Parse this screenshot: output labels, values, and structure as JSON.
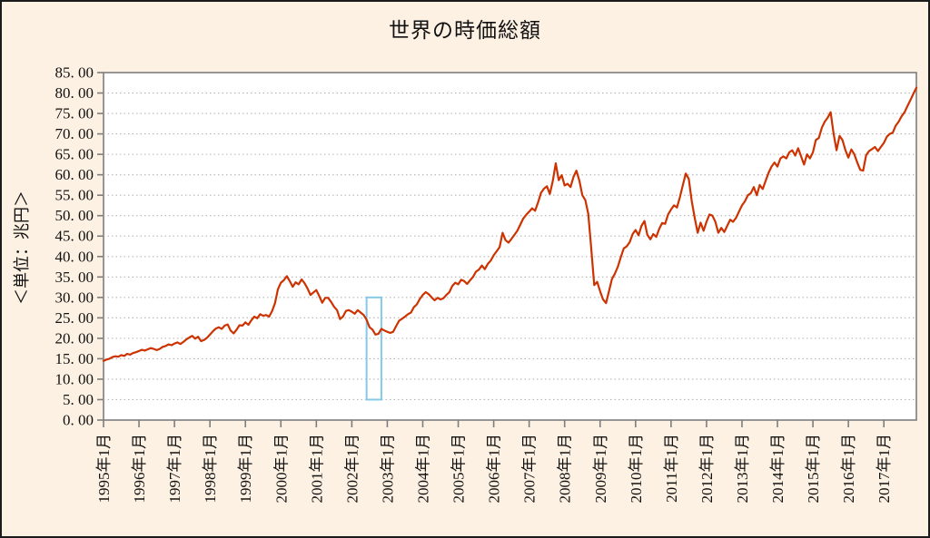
{
  "page": {
    "background_color": "#fdf1e3",
    "frame_border_color": "#1b1b1b",
    "plot_background_color": "#ffffff"
  },
  "chart_data": {
    "type": "line",
    "title": "世界の時価総額",
    "y_axis_title": "＜単位：兆円＞",
    "legend": "none",
    "grid": "horizontal dotted",
    "frequency": "monthly",
    "x_start": "1995-01",
    "x_end": "2017-12",
    "x_tick_labels": [
      "1995年1月",
      "1996年1月",
      "1997年1月",
      "1998年1月",
      "1999年1月",
      "2000年1月",
      "2001年1月",
      "2002年1月",
      "2003年1月",
      "2004年1月",
      "2005年1月",
      "2006年1月",
      "2007年1月",
      "2008年1月",
      "2009年1月",
      "2010年1月",
      "2011年1月",
      "2012年1月",
      "2013年1月",
      "2014年1月",
      "2015年1月",
      "2016年1月",
      "2017年1月"
    ],
    "ylim": [
      0,
      85
    ],
    "y_tick_step": 5,
    "y_tick_labels": [
      "0. 00",
      "5. 00",
      "10. 00",
      "15. 00",
      "20. 00",
      "25. 00",
      "30. 00",
      "35. 00",
      "40. 00",
      "45. 00",
      "50. 00",
      "55. 00",
      "60. 00",
      "65. 00",
      "70. 00",
      "75. 00",
      "80. 00",
      "85. 00"
    ],
    "line_color": "#cc3300",
    "axis_color": "#7d7d7d",
    "gridline_color": "#b5b5b5",
    "annotation": {
      "shape": "rectangle-outline",
      "color": "#85c9e8",
      "x_from": "2002-06",
      "x_to": "2002-11",
      "y_from": 5,
      "y_to": 30
    },
    "series": [
      {
        "name": "世界の時価総額",
        "values": [
          14.5,
          14.8,
          15.0,
          15.4,
          15.6,
          15.5,
          15.9,
          15.7,
          16.2,
          16.0,
          16.4,
          16.6,
          16.9,
          17.2,
          17.0,
          17.3,
          17.6,
          17.4,
          17.1,
          17.4,
          17.9,
          18.1,
          18.5,
          18.3,
          18.7,
          19.0,
          18.6,
          19.1,
          19.7,
          20.2,
          20.6,
          19.9,
          20.4,
          19.3,
          19.6,
          20.1,
          20.9,
          21.7,
          22.4,
          22.7,
          22.3,
          23.1,
          23.4,
          21.9,
          21.2,
          22.1,
          23.2,
          23.1,
          23.9,
          23.3,
          24.4,
          25.3,
          24.9,
          25.9,
          25.5,
          25.7,
          25.3,
          26.6,
          28.6,
          32.0,
          33.6,
          34.2,
          35.2,
          34.0,
          32.6,
          33.7,
          33.2,
          34.4,
          33.5,
          32.2,
          30.6,
          31.2,
          31.8,
          30.3,
          28.7,
          29.9,
          29.9,
          28.9,
          27.7,
          26.9,
          24.7,
          25.3,
          26.7,
          26.9,
          26.5,
          26.0,
          26.9,
          26.3,
          25.7,
          24.5,
          22.7,
          22.1,
          20.9,
          21.1,
          22.3,
          21.9,
          21.6,
          21.3,
          21.6,
          23.0,
          24.3,
          24.8,
          25.3,
          25.9,
          26.3,
          27.6,
          28.3,
          29.6,
          30.6,
          31.3,
          30.8,
          30.0,
          29.3,
          29.9,
          29.5,
          29.8,
          30.6,
          31.3,
          32.8,
          33.6,
          33.2,
          34.3,
          34.0,
          33.3,
          34.2,
          35.0,
          36.3,
          36.8,
          37.8,
          36.9,
          38.2,
          39.0,
          40.3,
          41.3,
          42.3,
          45.8,
          44.0,
          43.4,
          44.3,
          45.3,
          46.3,
          47.8,
          49.3,
          50.2,
          51.0,
          51.8,
          51.2,
          53.2,
          55.6,
          56.6,
          57.2,
          55.3,
          58.5,
          62.8,
          58.7,
          59.9,
          57.4,
          57.8,
          57.0,
          59.5,
          61.0,
          58.5,
          55.0,
          53.8,
          50.5,
          42.0,
          33.0,
          33.8,
          31.5,
          29.5,
          28.6,
          31.5,
          34.5,
          35.8,
          37.5,
          39.8,
          42.0,
          42.5,
          43.5,
          45.5,
          46.5,
          45.2,
          47.5,
          48.7,
          45.3,
          44.2,
          45.5,
          44.8,
          46.8,
          48.2,
          48.0,
          50.3,
          51.5,
          52.5,
          52.0,
          54.5,
          57.5,
          60.3,
          59.0,
          53.5,
          49.5,
          45.8,
          48.3,
          46.3,
          48.5,
          50.3,
          50.0,
          48.5,
          45.8,
          47.0,
          46.0,
          47.5,
          49.0,
          48.5,
          49.5,
          51.0,
          52.5,
          53.5,
          55.0,
          55.5,
          57.0,
          55.0,
          57.5,
          56.5,
          58.5,
          60.5,
          62.0,
          63.0,
          62.0,
          64.0,
          64.5,
          64.0,
          65.5,
          66.0,
          64.7,
          66.5,
          64.5,
          62.5,
          65.0,
          64.0,
          65.5,
          68.5,
          69.0,
          71.5,
          73.0,
          74.0,
          75.3,
          70.0,
          66.0,
          69.5,
          68.5,
          66.0,
          64.2,
          66.2,
          65.0,
          63.0,
          61.2,
          61.0,
          64.8,
          65.8,
          66.3,
          66.8,
          65.8,
          66.8,
          67.8,
          69.3,
          70.0,
          70.3,
          72.0,
          73.0,
          74.3,
          75.3,
          76.8,
          78.3,
          79.8,
          81.3
        ]
      }
    ]
  }
}
